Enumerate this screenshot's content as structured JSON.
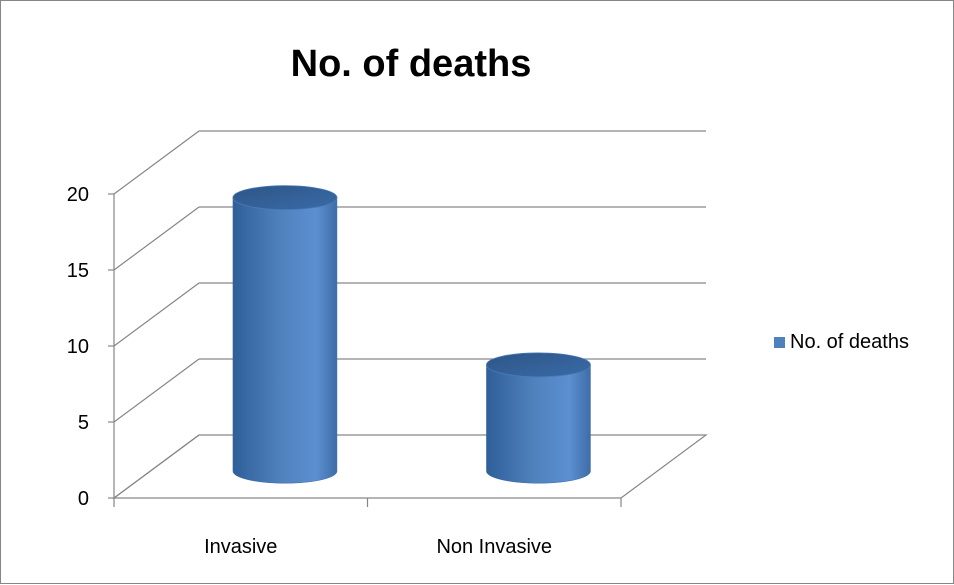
{
  "chart_data": {
    "type": "bar",
    "title": "No. of deaths",
    "categories": [
      "Invasive",
      "Non Invasive"
    ],
    "series": [
      {
        "name": "No. of deaths",
        "values": [
          18,
          7
        ],
        "color": "#4f81bd"
      }
    ],
    "ylim": [
      0,
      20
    ],
    "yticks": [
      0,
      5,
      10,
      15,
      20
    ],
    "xlabel": "",
    "ylabel": "",
    "grid": true,
    "legend": "right",
    "style": "3d-cylinder"
  }
}
